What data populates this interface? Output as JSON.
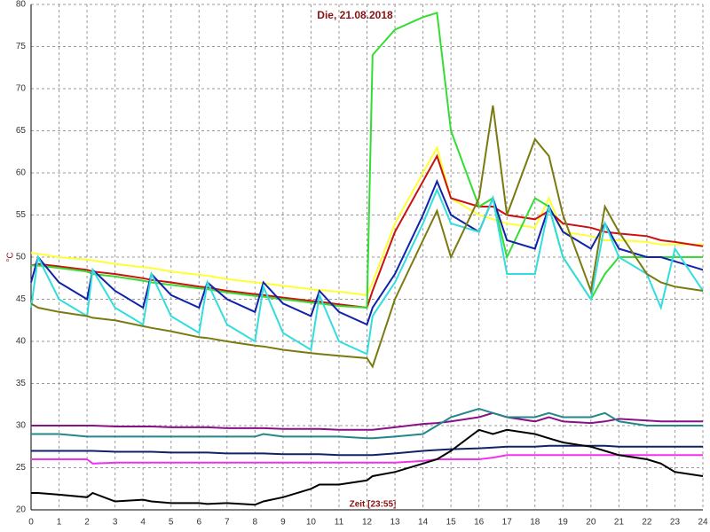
{
  "chart_data": {
    "type": "line",
    "title": "Die, 21.08.2018",
    "xlabel": "Zeit [23:55]",
    "ylabel": "°C",
    "xlim": [
      0,
      24
    ],
    "xticks": [
      0,
      1,
      2,
      3,
      4,
      5,
      6,
      7,
      8,
      9,
      10,
      11,
      12,
      13,
      14,
      15,
      16,
      17,
      18,
      19,
      20,
      21,
      22,
      23,
      24
    ],
    "ylim": [
      20,
      80
    ],
    "yticks": [
      20,
      25,
      30,
      35,
      40,
      45,
      50,
      55,
      60,
      65,
      70,
      75,
      80
    ],
    "grid": true,
    "x": [
      0,
      0.25,
      1,
      2,
      2.2,
      3,
      4,
      4.3,
      5,
      6,
      6.3,
      7,
      8,
      8.3,
      9,
      10,
      10.3,
      11,
      12,
      12.2,
      13,
      14,
      14.5,
      15,
      16,
      16.5,
      17,
      18,
      18.5,
      19,
      20,
      20.5,
      21,
      22,
      22.5,
      23,
      24
    ],
    "series": [
      {
        "color": "#ffff33",
        "values": [
          50.5,
          50.4,
          50,
          49.7,
          49.6,
          49.2,
          48.8,
          48.7,
          48.3,
          47.9,
          47.8,
          47.4,
          47,
          46.9,
          46.6,
          46.2,
          46.1,
          45.9,
          45.5,
          47,
          54,
          60,
          63,
          57,
          55,
          54.5,
          54,
          53.5,
          57,
          53,
          52.5,
          52,
          52,
          51.8,
          51.5,
          51.5,
          51.5
        ]
      },
      {
        "color": "#cc1111",
        "values": [
          49,
          49.2,
          48.9,
          48.5,
          48.3,
          48,
          47.5,
          47.3,
          47,
          46.5,
          46.4,
          46,
          45.6,
          45.5,
          45.2,
          44.8,
          44.7,
          44.4,
          44,
          46,
          53,
          59,
          62,
          57,
          56,
          56,
          55,
          54.5,
          55.5,
          54,
          53.5,
          53,
          52.8,
          52.5,
          52,
          51.8,
          51.3
        ]
      },
      {
        "color": "#33dd33",
        "values": [
          49,
          49,
          48.7,
          48.3,
          48,
          47.7,
          47.2,
          47,
          46.7,
          46.3,
          46.2,
          45.8,
          45.4,
          45.3,
          45,
          44.6,
          44.5,
          44.2,
          44,
          74,
          77,
          78.5,
          79,
          65,
          56,
          57,
          50,
          57,
          56,
          50,
          45,
          48,
          50,
          50,
          50,
          50,
          50
        ]
      },
      {
        "color": "#1122aa",
        "values": [
          47,
          50,
          47,
          45,
          48.5,
          46,
          44,
          48,
          45.5,
          44,
          47,
          45,
          43.5,
          47,
          44.5,
          43,
          46,
          43.5,
          42,
          44,
          48,
          55,
          59,
          55,
          53,
          57,
          52,
          51,
          56,
          53,
          51,
          54,
          51,
          50,
          50,
          49.5,
          48.5
        ]
      },
      {
        "color": "#33dddd",
        "values": [
          44,
          50,
          45,
          43,
          48.5,
          44,
          42,
          48,
          43,
          41,
          47,
          42,
          40,
          46.5,
          41,
          39,
          45.5,
          40,
          38.5,
          43,
          47,
          54,
          58,
          54,
          53,
          57,
          48,
          48,
          56,
          50,
          45,
          54,
          50,
          48,
          44,
          51,
          46
        ]
      },
      {
        "color": "#7a7a10",
        "values": [
          44.5,
          44,
          43.5,
          43,
          42.8,
          42.5,
          41.8,
          41.6,
          41.2,
          40.5,
          40.4,
          40,
          39.5,
          39.4,
          39,
          38.6,
          38.5,
          38.3,
          38,
          37,
          45,
          52,
          55.5,
          50,
          57,
          68,
          55,
          64,
          62,
          55,
          46,
          56,
          53,
          48,
          47,
          46.5,
          46
        ]
      },
      {
        "color": "#881188",
        "values": [
          30,
          30,
          30,
          30,
          30,
          29.9,
          29.9,
          29.9,
          29.8,
          29.8,
          29.8,
          29.7,
          29.7,
          29.7,
          29.6,
          29.6,
          29.6,
          29.5,
          29.5,
          29.5,
          29.8,
          30.2,
          30.3,
          30.5,
          31,
          31.5,
          31,
          30.5,
          31,
          30.5,
          30.3,
          30.5,
          30.8,
          30.6,
          30.5,
          30.5,
          30.5
        ]
      },
      {
        "color": "#228888",
        "values": [
          29,
          29,
          29,
          28.7,
          28.7,
          28.7,
          28.7,
          28.7,
          28.7,
          28.7,
          28.7,
          28.7,
          28.7,
          29,
          28.7,
          28.7,
          28.7,
          28.7,
          28.5,
          28.5,
          28.7,
          29,
          30,
          31,
          32,
          31.5,
          31,
          31,
          31.5,
          31,
          31,
          31.5,
          30.5,
          30,
          30,
          30,
          30
        ]
      },
      {
        "color": "#112266",
        "values": [
          27,
          27,
          27,
          27,
          27,
          26.9,
          26.9,
          26.9,
          26.8,
          26.8,
          26.8,
          26.7,
          26.7,
          26.7,
          26.6,
          26.6,
          26.6,
          26.5,
          26.5,
          26.5,
          26.7,
          27,
          27.1,
          27.2,
          27.3,
          27.4,
          27.5,
          27.5,
          27.6,
          27.6,
          27.6,
          27.6,
          27.5,
          27.5,
          27.5,
          27.5,
          27.5
        ]
      },
      {
        "color": "#ee33ee",
        "values": [
          26,
          26,
          26,
          26,
          25.5,
          25.6,
          25.6,
          25.6,
          25.6,
          25.6,
          25.6,
          25.6,
          25.6,
          25.6,
          25.6,
          25.6,
          25.6,
          25.6,
          25.6,
          25.6,
          25.6,
          25.8,
          26,
          26,
          26,
          26.2,
          26.5,
          26.5,
          26.5,
          26.5,
          26.5,
          26.5,
          26.5,
          26.5,
          26.5,
          26.5,
          26.5
        ]
      },
      {
        "color": "#000000",
        "values": [
          22,
          22,
          21.8,
          21.5,
          22,
          21,
          21.2,
          21,
          20.8,
          20.8,
          20.7,
          20.8,
          20.6,
          21,
          21.5,
          22.5,
          23,
          23,
          23.5,
          24,
          24.5,
          25.5,
          26,
          27,
          29.5,
          29,
          29.5,
          29,
          28.5,
          28,
          27.5,
          27,
          26.5,
          26,
          25.5,
          24.5,
          24
        ]
      }
    ]
  }
}
